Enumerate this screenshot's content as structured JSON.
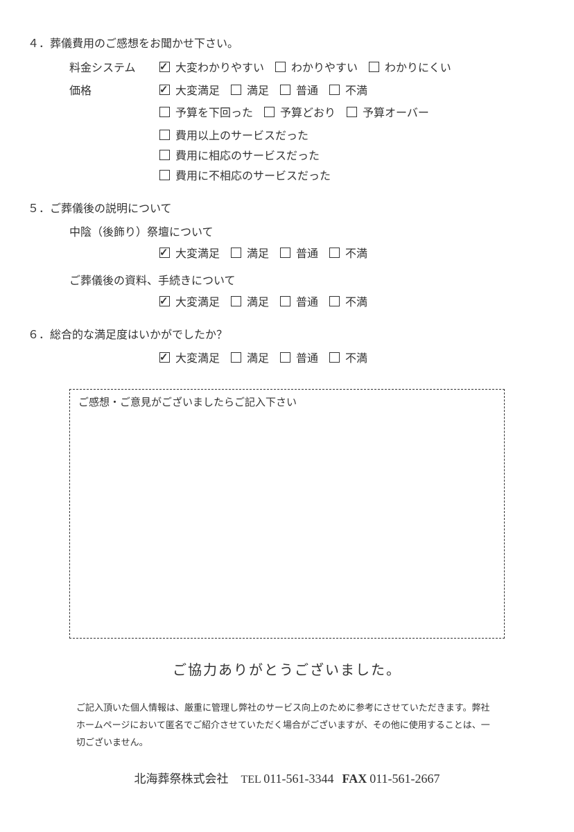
{
  "q4": {
    "title": "４．葬儀費用のご感想をお聞かせ下さい。",
    "row1_label": "料金システム",
    "row1_opts": [
      {
        "label": "大変わかりやすい",
        "checked": true
      },
      {
        "label": "わかりやすい",
        "checked": false
      },
      {
        "label": "わかりにくい",
        "checked": false
      }
    ],
    "row2_label": "価格",
    "row2_opts": [
      {
        "label": "大変満足",
        "checked": true
      },
      {
        "label": "満足",
        "checked": false
      },
      {
        "label": "普通",
        "checked": false
      },
      {
        "label": "不満",
        "checked": false
      }
    ],
    "row3_opts": [
      {
        "label": "予算を下回った",
        "checked": false
      },
      {
        "label": "予算どおり",
        "checked": false
      },
      {
        "label": "予算オーバー",
        "checked": false
      }
    ],
    "row4_opts": [
      {
        "label": "費用以上のサービスだった",
        "checked": false
      },
      {
        "label": "費用に相応のサービスだった",
        "checked": false
      },
      {
        "label": "費用に不相応のサービスだった",
        "checked": false
      }
    ]
  },
  "q5": {
    "title": "５．ご葬儀後の説明について",
    "sub1": "中陰（後飾り）祭壇について",
    "sub1_opts": [
      {
        "label": "大変満足",
        "checked": true
      },
      {
        "label": "満足",
        "checked": false
      },
      {
        "label": "普通",
        "checked": false
      },
      {
        "label": "不満",
        "checked": false
      }
    ],
    "sub2": "ご葬儀後の資料、手続きについて",
    "sub2_opts": [
      {
        "label": "大変満足",
        "checked": true
      },
      {
        "label": "満足",
        "checked": false
      },
      {
        "label": "普通",
        "checked": false
      },
      {
        "label": "不満",
        "checked": false
      }
    ]
  },
  "q6": {
    "title": "６．総合的な満足度はいかがでしたか？",
    "opts": [
      {
        "label": "大変満足",
        "checked": true
      },
      {
        "label": "満足",
        "checked": false
      },
      {
        "label": "普通",
        "checked": false
      },
      {
        "label": "不満",
        "checked": false
      }
    ]
  },
  "comment_prompt": "ご感想・ご意見がございましたらご記入下さい",
  "thanks": "ご協力ありがとうございました。",
  "disclaimer": "ご記入頂いた個人情報は、厳重に管理し弊社のサービス向上のために参考にさせていただきます。弊社ホームページにおいて匿名でご紹介させていただく場合がございますが、その他に使用することは、一切ございません。",
  "footer": {
    "company": "北海葬祭株式会社",
    "tel_label": "TEL",
    "tel": "011-561-3344",
    "fax_label": "FAX",
    "fax": "011-561-2667"
  }
}
